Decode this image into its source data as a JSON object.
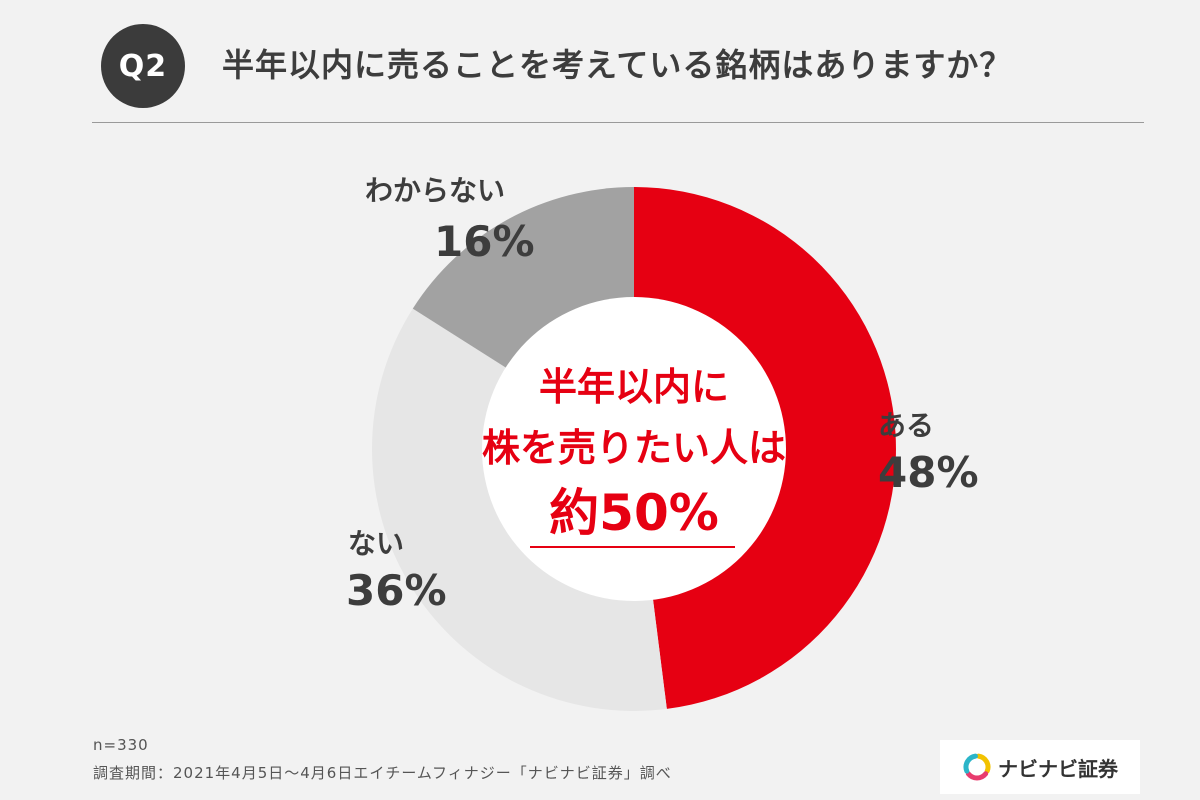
{
  "header": {
    "badge": "Q2",
    "question": "半年以内に売ることを考えている銘柄はありますか？"
  },
  "chart_data": {
    "type": "pie",
    "donut": true,
    "slices": [
      {
        "label": "ある",
        "pct_label": "48%",
        "value": 48,
        "color": "#e60012"
      },
      {
        "label": "ない",
        "pct_label": "36%",
        "value": 36,
        "color": "#e6e6e6"
      },
      {
        "label": "わからない",
        "pct_label": "16%",
        "value": 16,
        "color": "#a2a2a2"
      }
    ],
    "center_text": {
      "line1": "半年以内に",
      "line2": "株を売りたい人は",
      "line3": "約50%"
    }
  },
  "footer": {
    "n": "n=330",
    "survey": "調査期間：2021年4月5日〜4月6日エイチームフィナジー「ナビナビ証券」調べ"
  },
  "logo": {
    "text": "ナビナビ証券",
    "icon": "navinavi-ring-logo-icon",
    "colors": [
      "#f2c200",
      "#e83c6e",
      "#2bb5c9"
    ]
  }
}
